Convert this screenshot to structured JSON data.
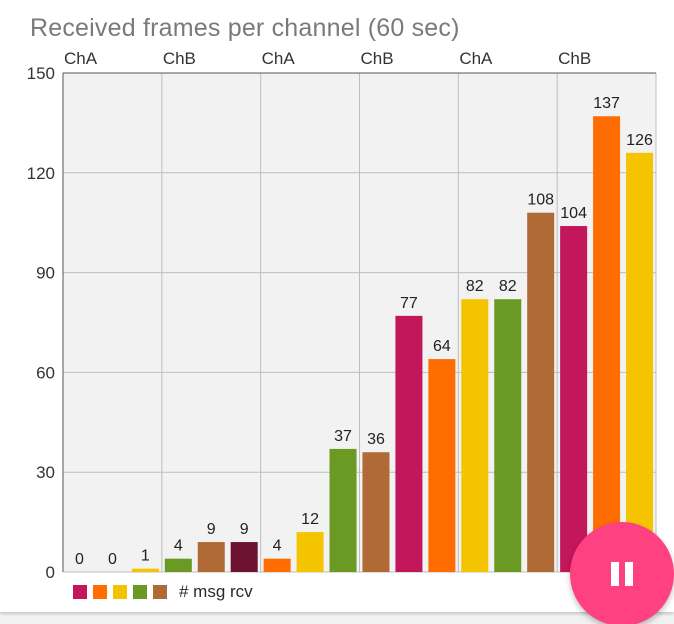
{
  "chart_data": {
    "type": "bar",
    "title": "Received frames per channel (60 sec)",
    "ylim": [
      0,
      150
    ],
    "yticks": [
      0,
      30,
      60,
      90,
      120,
      150
    ],
    "top_axis_labels": [
      "ChA",
      "ChB",
      "ChA",
      "ChB",
      "ChA",
      "ChB"
    ],
    "grid": true,
    "values": [
      0,
      0,
      1,
      4,
      9,
      9,
      4,
      12,
      37,
      36,
      77,
      64,
      82,
      82,
      108,
      104,
      137,
      126
    ],
    "bar_colors": [
      "#c2185b",
      "#ff6d00",
      "#f5c400",
      "#6a9a23",
      "#b06a35",
      "#6d1230",
      "#ff6d00",
      "#f5c400",
      "#6a9a23",
      "#b06a35",
      "#c2185b",
      "#ff6d00",
      "#f5c400",
      "#6a9a23",
      "#b06a35",
      "#c2185b",
      "#ff6d00",
      "#f5c400"
    ],
    "legend": {
      "colors": [
        "#c2185b",
        "#ff6d00",
        "#f5c400",
        "#6a9a23",
        "#b06a35"
      ],
      "label": "# msg rcv",
      "position": "bottom-left"
    }
  },
  "fab": {
    "icon": "pause-icon",
    "color": "#ff4081"
  }
}
